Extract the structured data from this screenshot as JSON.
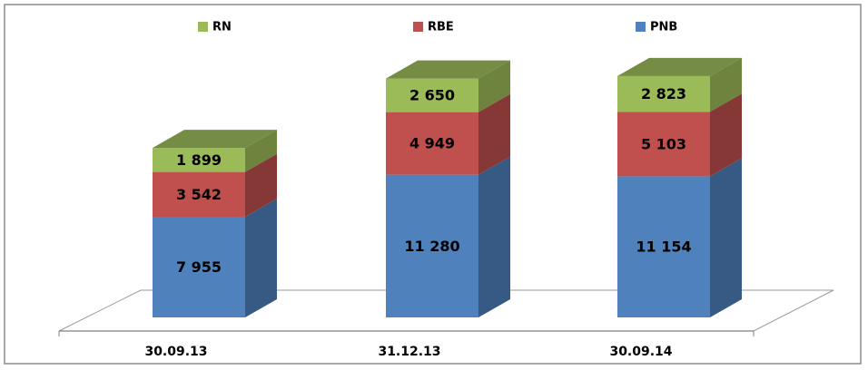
{
  "chart_data": {
    "type": "bar",
    "stacked": true,
    "categories": [
      "30.09.13",
      "31.12.13",
      "30.09.14"
    ],
    "series": [
      {
        "name": "PNB",
        "color": "#4f81bd",
        "values": [
          7955,
          11280,
          11154
        ],
        "value_labels": [
          "7 955",
          "11 280",
          "11 154"
        ]
      },
      {
        "name": "RBE",
        "color": "#c0504d",
        "values": [
          3542,
          4949,
          5103
        ],
        "value_labels": [
          "3 542",
          "4 949",
          "5 103"
        ]
      },
      {
        "name": "RN",
        "color": "#9bbb59",
        "values": [
          1899,
          2650,
          2823
        ],
        "value_labels": [
          "1 899",
          "2 650",
          "2 823"
        ]
      }
    ],
    "legend": "top"
  }
}
